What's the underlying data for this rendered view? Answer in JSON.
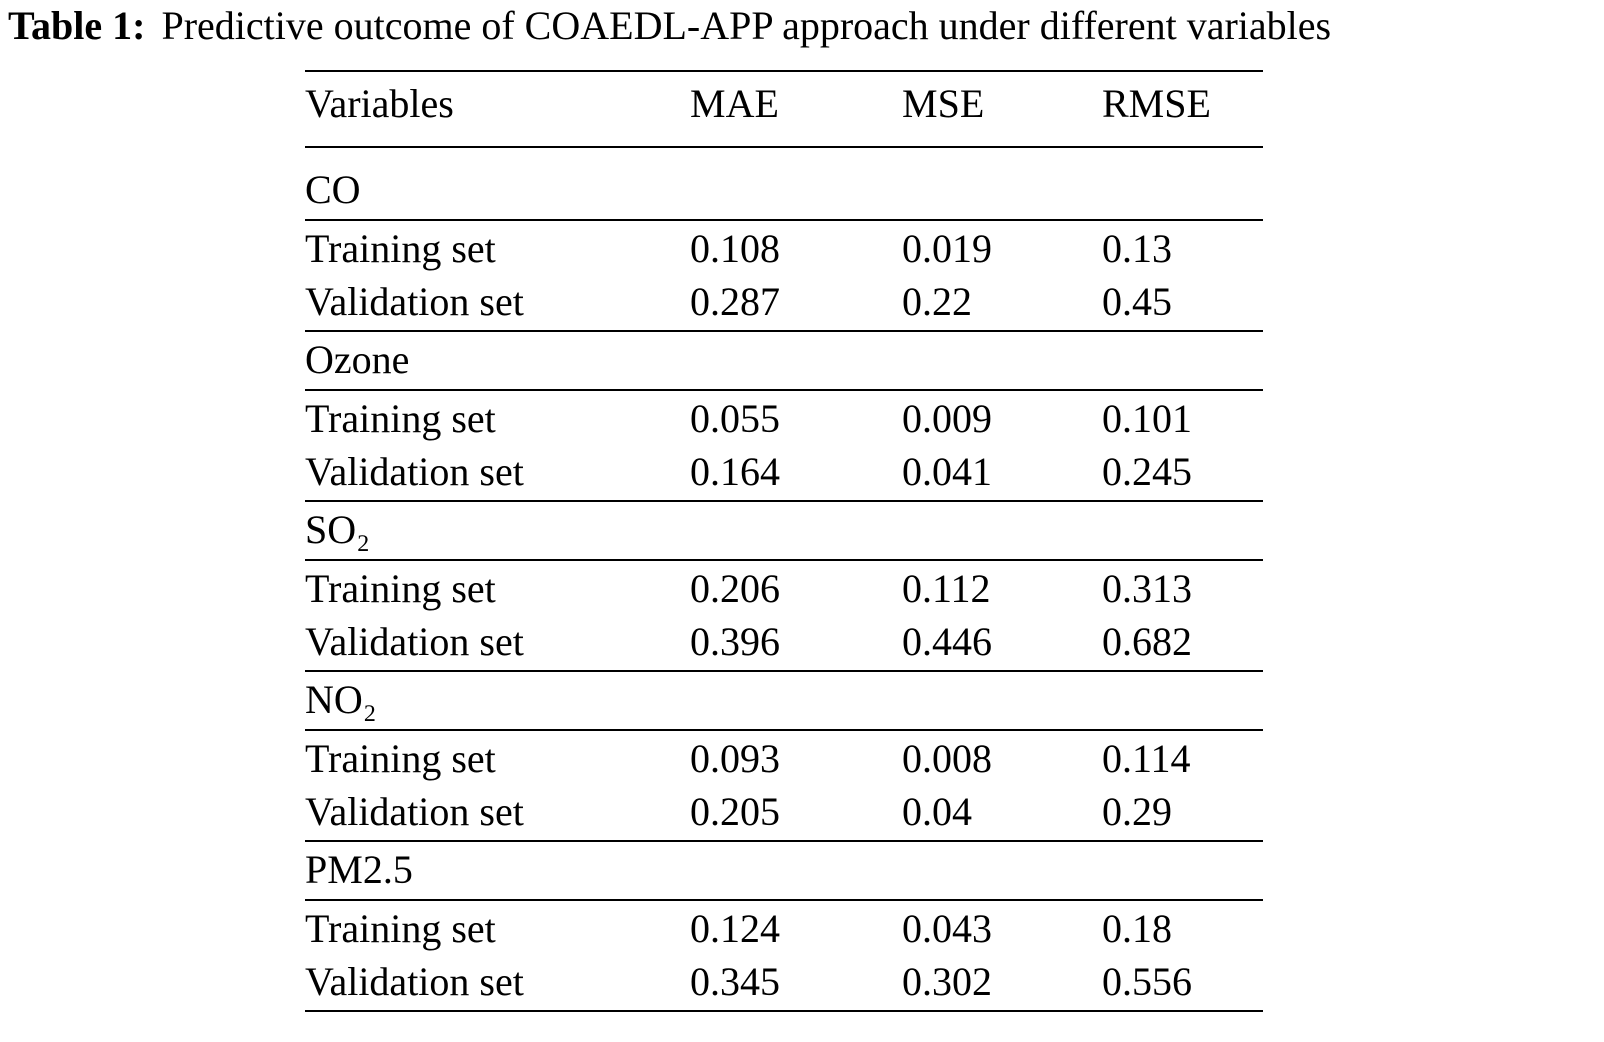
{
  "caption": {
    "label": "Table 1:",
    "text": "Predictive outcome of COAEDL-APP approach under different variables"
  },
  "table": {
    "header": [
      "Variables",
      "MAE",
      "MSE",
      "RMSE"
    ],
    "groups": [
      {
        "name": "CO",
        "rows": [
          [
            "Training set",
            "0.108",
            "0.019",
            "0.13"
          ],
          [
            "Validation set",
            "0.287",
            "0.22",
            "0.45"
          ]
        ]
      },
      {
        "name": "Ozone",
        "rows": [
          [
            "Training set",
            "0.055",
            "0.009",
            "0.101"
          ],
          [
            "Validation set",
            "0.164",
            "0.041",
            "0.245"
          ]
        ]
      },
      {
        "name": "SO₂",
        "rows": [
          [
            "Training set",
            "0.206",
            "0.112",
            "0.313"
          ],
          [
            "Validation set",
            "0.396",
            "0.446",
            "0.682"
          ]
        ]
      },
      {
        "name": "NO₂",
        "rows": [
          [
            "Training set",
            "0.093",
            "0.008",
            "0.114"
          ],
          [
            "Validation set",
            "0.205",
            "0.04",
            "0.29"
          ]
        ]
      },
      {
        "name": "PM2.5",
        "rows": [
          [
            "Training set",
            "0.124",
            "0.043",
            "0.18"
          ],
          [
            "Validation set",
            "0.345",
            "0.302",
            "0.556"
          ]
        ]
      }
    ]
  }
}
